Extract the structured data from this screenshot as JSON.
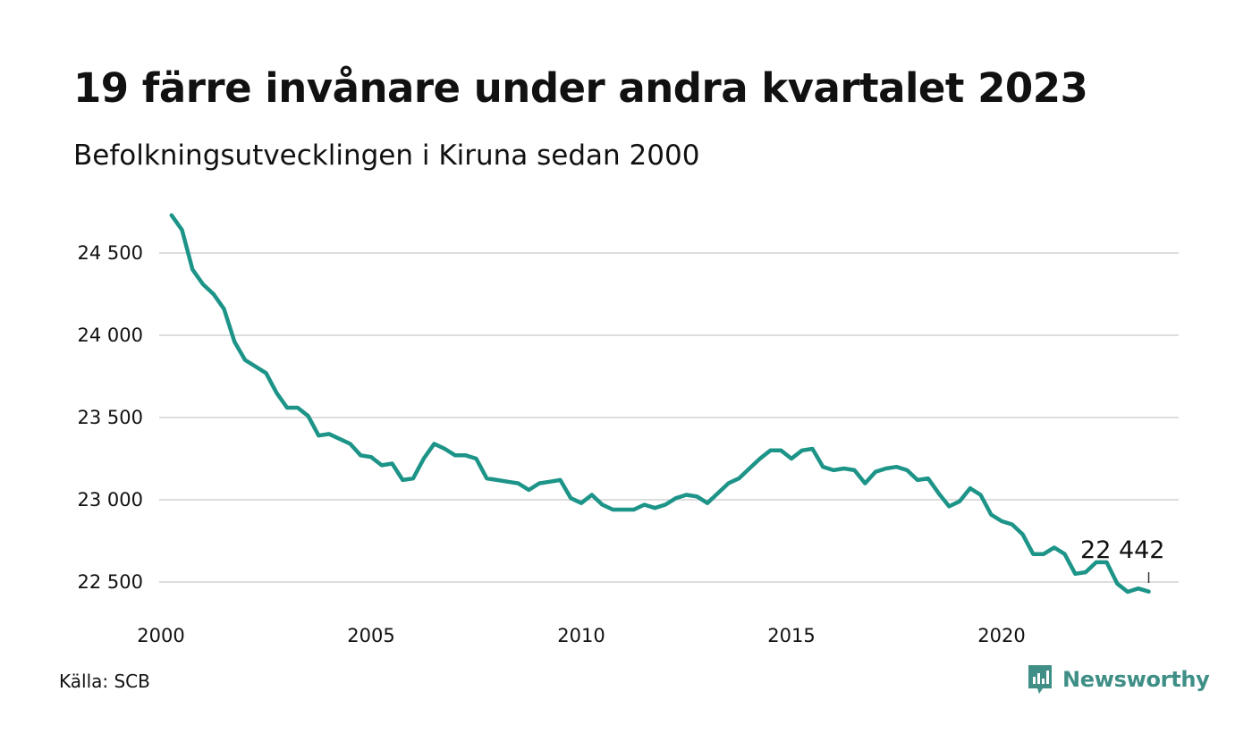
{
  "header": {
    "title": "19 färre invånare under andra kvartalet 2023",
    "subtitle": "Befolkningsutvecklingen i Kiruna sedan 2000"
  },
  "footer": {
    "source": "Källa: SCB",
    "brand": "Newsworthy",
    "brand_icon": "newsworthy-logo-icon"
  },
  "colors": {
    "line": "#1d9488",
    "grid": "#dddddd",
    "brand": "#3f8f87"
  },
  "chart_data": {
    "type": "line",
    "title": "19 färre invånare under andra kvartalet 2023",
    "subtitle": "Befolkningsutvecklingen i Kiruna sedan 2000",
    "xlabel": "",
    "ylabel": "",
    "xlim": [
      2000,
      2024
    ],
    "ylim": [
      22400,
      24750
    ],
    "x_ticks": [
      2000,
      2005,
      2010,
      2015,
      2020
    ],
    "x_tick_labels": [
      "2000",
      "2005",
      "2010",
      "2015",
      "2020"
    ],
    "y_ticks": [
      22500,
      23000,
      23500,
      24000,
      24500
    ],
    "y_tick_labels": [
      "22 500",
      "23 000",
      "23 500",
      "24 000",
      "24 500"
    ],
    "grid": "horizontal",
    "legend": "none",
    "annotation": {
      "label": "22 442",
      "x": 2023.5,
      "y": 22442
    },
    "series": [
      {
        "x": [
          2000.25,
          2000.5,
          2000.75,
          2001,
          2001.25,
          2001.5,
          2001.75,
          2002,
          2002.25,
          2002.5,
          2002.75,
          2003,
          2003.25,
          2003.5,
          2003.75,
          2004,
          2004.25,
          2004.5,
          2004.75,
          2005,
          2005.25,
          2005.5,
          2005.75,
          2006,
          2006.25,
          2006.5,
          2006.75,
          2007,
          2007.25,
          2007.5,
          2007.75,
          2008,
          2008.25,
          2008.5,
          2008.75,
          2009,
          2009.25,
          2009.5,
          2009.75,
          2010,
          2010.25,
          2010.5,
          2010.75,
          2011,
          2011.25,
          2011.5,
          2011.75,
          2012,
          2012.25,
          2012.5,
          2012.75,
          2013,
          2013.25,
          2013.5,
          2013.75,
          2014,
          2014.25,
          2014.5,
          2014.75,
          2015,
          2015.25,
          2015.5,
          2015.75,
          2016,
          2016.25,
          2016.5,
          2016.75,
          2017,
          2017.25,
          2017.5,
          2017.75,
          2018,
          2018.25,
          2018.5,
          2018.75,
          2019,
          2019.25,
          2019.5,
          2019.75,
          2020,
          2020.25,
          2020.5,
          2020.75,
          2021,
          2021.25,
          2021.5,
          2021.75,
          2022,
          2022.25,
          2022.5,
          2022.75,
          2023,
          2023.25,
          2023.5
        ],
        "values": [
          24730,
          24640,
          24400,
          24310,
          24250,
          24160,
          23960,
          23850,
          23810,
          23770,
          23650,
          23560,
          23560,
          23510,
          23390,
          23400,
          23370,
          23340,
          23270,
          23260,
          23210,
          23220,
          23120,
          23130,
          23250,
          23340,
          23310,
          23270,
          23270,
          23250,
          23130,
          23120,
          23110,
          23100,
          23060,
          23100,
          23110,
          23120,
          23010,
          22980,
          23030,
          22970,
          22940,
          22940,
          22940,
          22970,
          22950,
          22970,
          23010,
          23030,
          23020,
          22980,
          23040,
          23100,
          23130,
          23190,
          23250,
          23300,
          23300,
          23250,
          23300,
          23310,
          23200,
          23180,
          23190,
          23180,
          23100,
          23170,
          23190,
          23200,
          23180,
          23120,
          23130,
          23040,
          22960,
          22990,
          23070,
          23030,
          22910,
          22870,
          22850,
          22790,
          22670,
          22670,
          22710,
          22670,
          22550,
          22560,
          22620,
          22620,
          22490,
          22440,
          22461,
          22442
        ]
      }
    ]
  }
}
